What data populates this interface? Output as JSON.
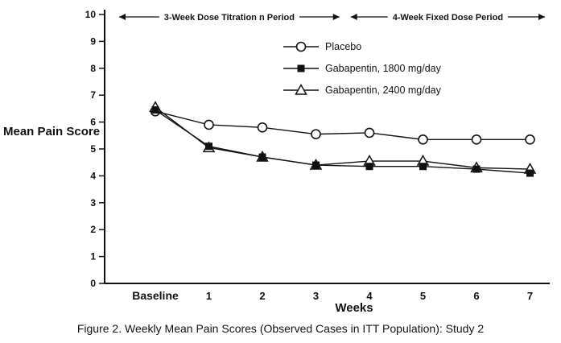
{
  "caption": "Figure 2. Weekly Mean Pain Scores (Observed Cases in ITT Population): Study 2",
  "chart_data": {
    "type": "line",
    "title": "",
    "xlabel": "Weeks",
    "ylabel": "Mean Pain Score",
    "ylim": [
      0,
      10
    ],
    "yticks": [
      0,
      1,
      2,
      3,
      4,
      5,
      6,
      7,
      8,
      9,
      10
    ],
    "categories": [
      "Baseline",
      "1",
      "2",
      "3",
      "4",
      "5",
      "6",
      "7"
    ],
    "series": [
      {
        "name": "Placebo",
        "marker": "circle-open",
        "color": "#111111",
        "values": [
          6.4,
          5.9,
          5.8,
          5.55,
          5.6,
          5.35,
          5.35,
          5.35
        ]
      },
      {
        "name": "Gabapentin, 1800 mg/day",
        "marker": "square-filled",
        "color": "#111111",
        "values": [
          6.45,
          5.1,
          4.7,
          4.4,
          4.35,
          4.35,
          4.25,
          4.1
        ]
      },
      {
        "name": "Gabapentin, 2400 mg/day",
        "marker": "triangle-open",
        "color": "#111111",
        "values": [
          6.55,
          5.05,
          4.7,
          4.4,
          4.55,
          4.55,
          4.3,
          4.25
        ]
      }
    ],
    "annotations": [
      {
        "label": "3-Week Dose Titration n Period"
      },
      {
        "label": "4-Week Fixed Dose Period"
      }
    ],
    "legend_position": "top-right-inside",
    "grid": false
  }
}
